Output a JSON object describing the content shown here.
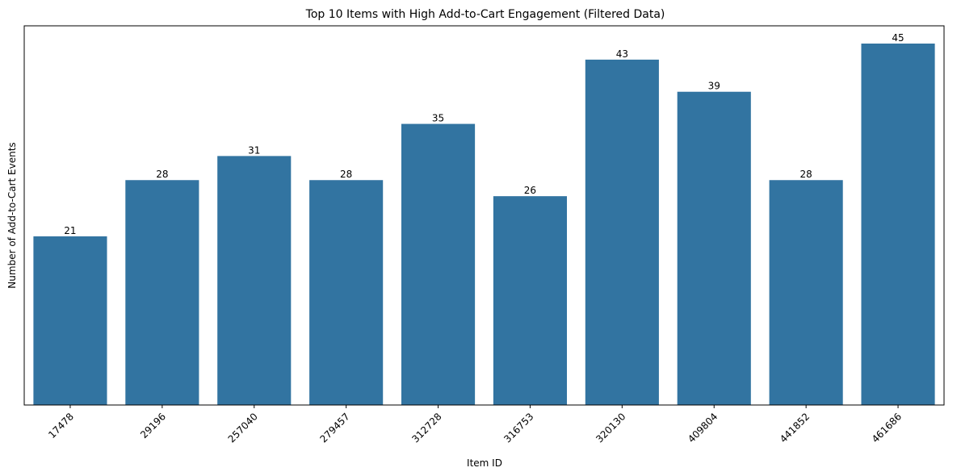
{
  "chart_data": {
    "type": "bar",
    "title": "Top 10 Items with High Add-to-Cart Engagement (Filtered Data)",
    "xlabel": "Item ID",
    "ylabel": "Number of Add-to-Cart Events",
    "categories": [
      "17478",
      "29196",
      "257040",
      "279457",
      "312728",
      "316753",
      "320130",
      "409804",
      "441852",
      "461686"
    ],
    "values": [
      21,
      28,
      31,
      28,
      35,
      26,
      43,
      39,
      28,
      45
    ],
    "ylim": [
      0,
      45
    ],
    "grid": false,
    "legend": "none",
    "bar_color": "#3274a1",
    "tick_rotation_deg": 45,
    "y_ticks_visible": false
  }
}
